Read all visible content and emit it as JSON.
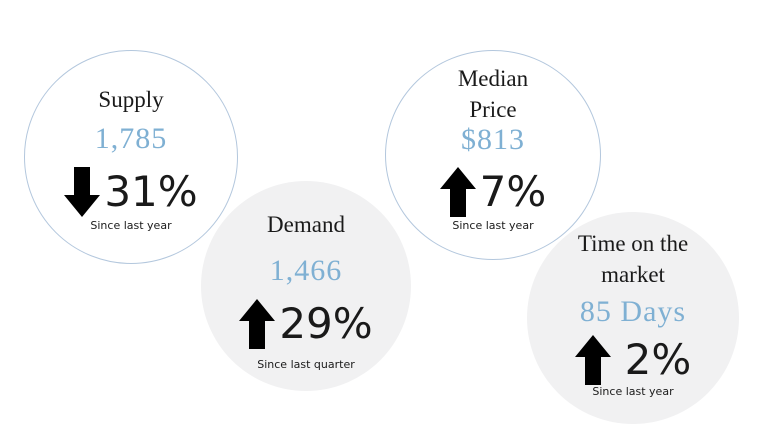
{
  "stats": {
    "supply": {
      "label": "Supply",
      "value": "1,785",
      "direction": "down",
      "change": "31%",
      "since": "Since last year",
      "arrow_icon": "arrow-down-icon"
    },
    "demand": {
      "label": "Demand",
      "value": "1,466",
      "direction": "up",
      "change": "29%",
      "since": "Since last quarter",
      "arrow_icon": "arrow-up-icon"
    },
    "median_price": {
      "label_line1": "Median",
      "label_line2": "Price",
      "value": "$813",
      "direction": "up",
      "change": "7%",
      "since": "Since last year",
      "arrow_icon": "arrow-up-icon"
    },
    "time_on_market": {
      "label_line1": "Time on the",
      "label_line2": "market",
      "value": "85 Days",
      "direction": "up",
      "change": "2%",
      "since": "Since last year",
      "arrow_icon": "arrow-up-icon"
    }
  },
  "colors": {
    "value": "#7fb0d3",
    "outline": "#b3c7dd",
    "filled_circle": "#f1f1f2",
    "text": "#1a1a1a"
  }
}
